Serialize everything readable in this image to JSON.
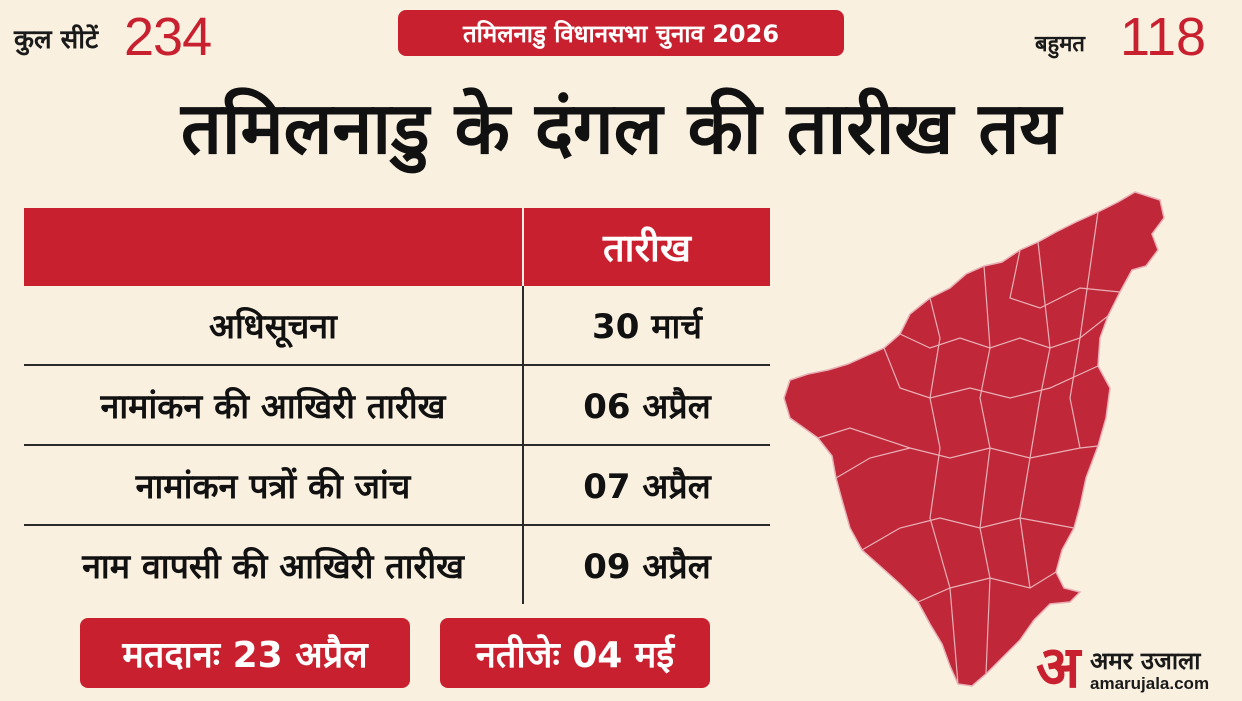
{
  "header": {
    "seats_label": "कुल सीटें",
    "seats_value": "234",
    "banner": "तमिलनाडु विधानसभा चुनाव 2026",
    "majority_label": "बहुमत",
    "majority_value": "118"
  },
  "headline": "तमिलनाडु के दंगल की तारीख तय",
  "table": {
    "header_date": "तारीख",
    "rows": [
      {
        "event": "अधिसूचना",
        "date": "30 मार्च"
      },
      {
        "event": "नामांकन की आखिरी तारीख",
        "date": "06 अप्रैल"
      },
      {
        "event": "नामांकन पत्रों की जांच",
        "date": "07 अप्रैल"
      },
      {
        "event": "नाम वापसी की आखिरी तारीख",
        "date": "09 अप्रैल"
      }
    ]
  },
  "badges": {
    "voting": "मतदानः 23 अप्रैल",
    "results": "नतीजेः 04 मई"
  },
  "logo": {
    "mark": "अ",
    "name": "अमर उजाला",
    "url": "amarujala.com"
  },
  "colors": {
    "accent": "#c8202f",
    "background": "#f9f0e0",
    "map_fill": "#c0283a"
  }
}
